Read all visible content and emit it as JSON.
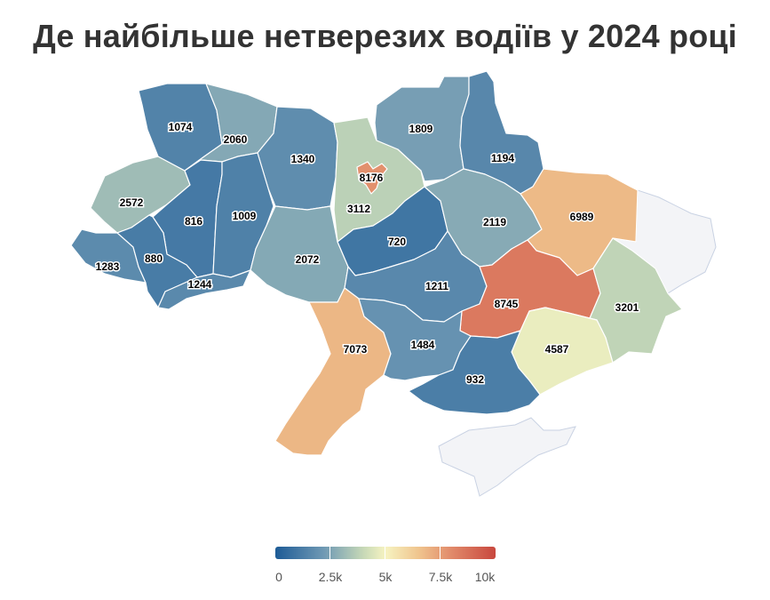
{
  "title": "Де найбільше нетверезих водіїв у 2024 році",
  "map_data": {
    "type": "choropleth",
    "value_range": [
      0,
      10000
    ],
    "colorscale": [
      "#1d5b96",
      "#6f99b4",
      "#c7d9b7",
      "#f6f3c1",
      "#f0c58e",
      "#e18a6a",
      "#c8473e"
    ],
    "regions": [
      {
        "key": "volyn",
        "value": 1074,
        "label": "1074"
      },
      {
        "key": "rivne",
        "value": 2060,
        "label": "2060"
      },
      {
        "key": "zhytomyr",
        "value": 1340,
        "label": "1340"
      },
      {
        "key": "kyiv-city",
        "value": 8176,
        "label": "8176"
      },
      {
        "key": "kyiv-oblast",
        "value": 3112,
        "label": "3112"
      },
      {
        "key": "chernihiv",
        "value": 1809,
        "label": "1809"
      },
      {
        "key": "sumy",
        "value": 1194,
        "label": "1194"
      },
      {
        "key": "lviv",
        "value": 2572,
        "label": "2572"
      },
      {
        "key": "ternopil",
        "value": 816,
        "label": "816"
      },
      {
        "key": "khmelnytskyi",
        "value": 1009,
        "label": "1009"
      },
      {
        "key": "poltava",
        "value": 2119,
        "label": "2119"
      },
      {
        "key": "kharkiv",
        "value": 6989,
        "label": "6989"
      },
      {
        "key": "zakarpattia",
        "value": 1283,
        "label": "1283"
      },
      {
        "key": "ivano-frankivsk",
        "value": 880,
        "label": "880"
      },
      {
        "key": "chernivtsi",
        "value": 1244,
        "label": "1244"
      },
      {
        "key": "vinnytsia",
        "value": 2072,
        "label": "2072"
      },
      {
        "key": "cherkasy",
        "value": 720,
        "label": "720"
      },
      {
        "key": "kirovohrad",
        "value": 1211,
        "label": "1211"
      },
      {
        "key": "dnipropetrovsk",
        "value": 8745,
        "label": "8745"
      },
      {
        "key": "donetsk",
        "value": 3201,
        "label": "3201"
      },
      {
        "key": "odesa",
        "value": 7073,
        "label": "7073"
      },
      {
        "key": "mykolaiv",
        "value": 1484,
        "label": "1484"
      },
      {
        "key": "zaporizhzhia",
        "value": 4587,
        "label": "4587"
      },
      {
        "key": "kherson",
        "value": 932,
        "label": "932"
      }
    ]
  },
  "legend": {
    "ticks": [
      "0",
      "2.5k",
      "5k",
      "7.5k",
      "10k"
    ]
  }
}
